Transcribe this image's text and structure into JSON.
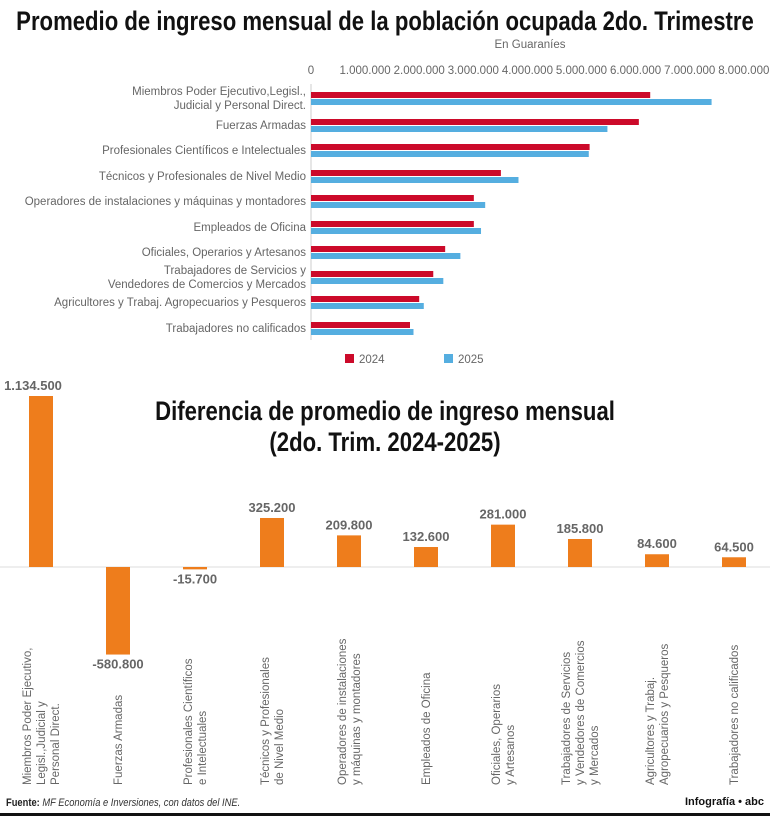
{
  "chart_data": [
    {
      "type": "bar",
      "orientation": "horizontal",
      "title": "Promedio de ingreso mensual de la población ocupada 2do. Trimestre",
      "subtitle": "En Guaraníes",
      "xlim": [
        0,
        8000000
      ],
      "xticks": [
        "0",
        "1.000.000",
        "2.000.000",
        "3.000.000",
        "4.000.000",
        "5.000.000",
        "6.000.000",
        "7.000.000",
        "8.000.000"
      ],
      "categories": [
        [
          "Miembros Poder Ejecutivo,Legisl.,",
          "Judicial y Personal Direct."
        ],
        [
          "Fuerzas Armadas"
        ],
        [
          "Profesionales Científicos e Intelectuales"
        ],
        [
          "Técnicos y Profesionales de Nivel Medio"
        ],
        [
          "Operadores de instalaciones y máquinas y montadores"
        ],
        [
          "Empleados de Oficina"
        ],
        [
          "Oficiales, Operarios y Artesanos"
        ],
        [
          "Trabajadores de Servicios y",
          "Vendedores de Comercios y Mercados"
        ],
        [
          "Agricultores y Trabaj. Agropecuarios y Pesqueros"
        ],
        [
          "Trabajadores no calificados"
        ]
      ],
      "series": [
        {
          "name": "2024",
          "color": "#cc0a2a",
          "values": [
            6270000,
            6060000,
            5150000,
            3510000,
            3010000,
            3010000,
            2480000,
            2260000,
            2000000,
            1830000
          ]
        },
        {
          "name": "2025",
          "color": "#55aee0",
          "values": [
            7404500,
            5479200,
            5134300,
            3835200,
            3219800,
            3142600,
            2761000,
            2445800,
            2084600,
            1894500
          ]
        }
      ],
      "legend": "bottom"
    },
    {
      "type": "bar",
      "title": [
        "Diferencia de promedio de ingreso mensual",
        "(2do. Trim. 2024-2025)"
      ],
      "color": "#ee7d1c",
      "categories": [
        [
          "Miembros Poder Ejecutivo,",
          "Legisl.,Judicial y",
          "Personal Direct."
        ],
        [
          "Fuerzas Armadas"
        ],
        [
          "Profesionales Científicos",
          "e Intelectuales"
        ],
        [
          "Técnicos y Profesionales",
          "de Nivel Medio"
        ],
        [
          "Operadores de instalaciones",
          "y máquinas y montadores"
        ],
        [
          "Empleados de Oficina"
        ],
        [
          "Oficiales, Operarios",
          "y Artesanos"
        ],
        [
          "Trabajadores de Servicios",
          "y Vendedores de Comercios",
          "y Mercados"
        ],
        [
          "Agricultores y Trabaj.",
          "Agropecuarios y Pesqueros"
        ],
        [
          "Trabajadores no calificados"
        ]
      ],
      "values": [
        1134500,
        -580800,
        -15700,
        325200,
        209800,
        132600,
        281000,
        185800,
        84600,
        64500
      ],
      "labels": [
        "1.134.500",
        "-580.800",
        "-15.700",
        "325.200",
        "209.800",
        "132.600",
        "281.000",
        "185.800",
        "84.600",
        "64.500"
      ]
    }
  ],
  "footer": {
    "source_label": "Fuente:",
    "source_text": "MF Economía e Inversiones, con datos del INE.",
    "credit": "Infografía • abc"
  }
}
